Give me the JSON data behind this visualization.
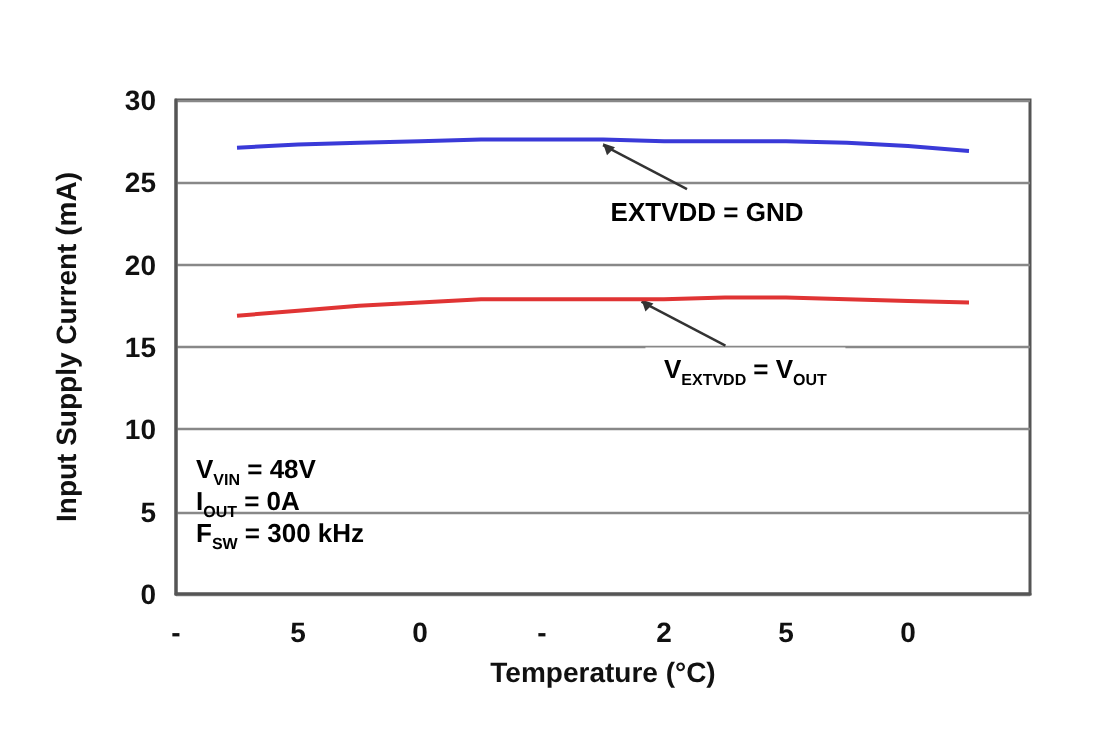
{
  "chart_data": {
    "type": "line",
    "xlabel": "Temperature (°C)",
    "ylabel": "Input Supply Current (mA)",
    "ylim": [
      0,
      30
    ],
    "yticks": [
      0,
      5,
      10,
      15,
      20,
      25,
      30
    ],
    "categories": [
      "-",
      null,
      "5",
      null,
      "0",
      null,
      "-",
      null,
      "2",
      null,
      "5",
      null,
      "0",
      null,
      null
    ],
    "series": [
      {
        "color": "#3a3ad8",
        "values": [
          null,
          27.1,
          27.3,
          27.4,
          27.5,
          27.6,
          27.6,
          27.6,
          27.5,
          27.5,
          27.5,
          27.4,
          27.2,
          26.9,
          null
        ]
      },
      {
        "color": "#e03434",
        "values": [
          null,
          16.9,
          17.2,
          17.5,
          17.7,
          17.9,
          17.9,
          17.9,
          17.9,
          18.0,
          18.0,
          17.9,
          17.8,
          17.7,
          null
        ]
      }
    ],
    "grid": "y",
    "marker": "none",
    "line_style": "solid",
    "annotations": [
      {
        "text": "EXTVDD = GND",
        "y": 27.5
      },
      {
        "text": "V$_{EXTVDD}$ = V$_{OUT}$",
        "y": 18.0
      },
      "V$_{VIN}$ = 48V",
      "I$_{OUT}$ = 0A",
      "F$_{SW}$ = 300 kHz"
    ]
  }
}
